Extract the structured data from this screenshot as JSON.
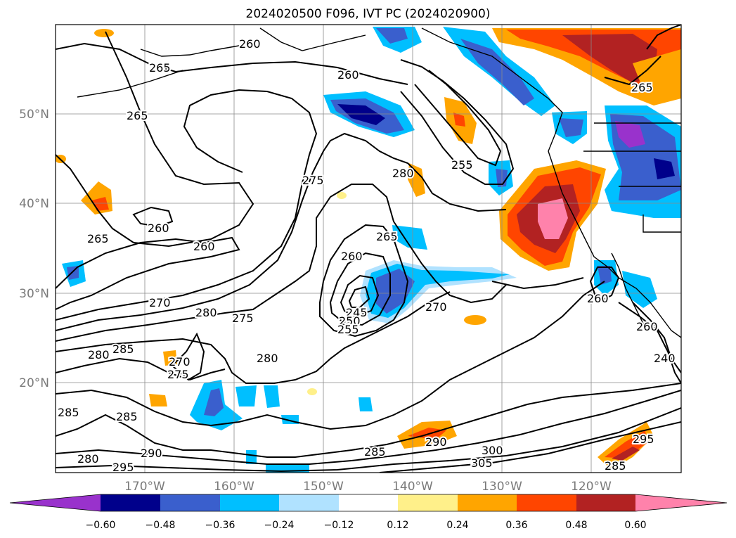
{
  "title": "2024020500 F096, IVT PC (2024020900)",
  "lat_labels": [
    "50°N",
    "40°N",
    "30°N",
    "20°N"
  ],
  "lon_labels": [
    "170°W",
    "160°W",
    "150°W",
    "140°W",
    "130°W",
    "120°W"
  ],
  "colorbar": {
    "ticks": [
      "−0.60",
      "−0.48",
      "−0.36",
      "−0.24",
      "−0.12",
      "0.12",
      "0.24",
      "0.36",
      "0.48",
      "0.60"
    ],
    "colors": [
      "#9932cc",
      "#00008b",
      "#3a5fcd",
      "#00bfff",
      "#b0e2ff",
      "#ffffff",
      "#fff08a",
      "#ffa500",
      "#ff4500",
      "#b22222",
      "#ff82ab"
    ]
  },
  "contour_labels": [
    "260",
    "265",
    "260",
    "265",
    "275",
    "280",
    "255",
    "260",
    "260",
    "265",
    "270",
    "280",
    "275",
    "285",
    "280",
    "270",
    "275",
    "280",
    "245",
    "250",
    "255",
    "260",
    "265",
    "270",
    "260",
    "265",
    "285",
    "285",
    "280",
    "290",
    "295",
    "285",
    "290",
    "300",
    "305",
    "295",
    "285",
    "260",
    "240"
  ]
}
